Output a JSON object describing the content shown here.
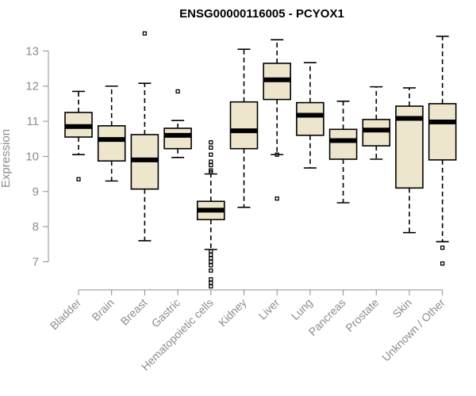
{
  "chart_data": {
    "type": "boxplot",
    "title": "ENSG00000116005 - PCYOX1",
    "xlabel": "",
    "ylabel": "Expression",
    "ylim": [
      6.2,
      13.55
    ],
    "yticks": [
      7,
      8,
      9,
      10,
      11,
      12,
      13
    ],
    "grid": false,
    "colors": {
      "box_fill": "#ede6cc",
      "stroke": "#000000",
      "axis": "#8c8c8c",
      "text": "#8c8c8c"
    },
    "categories": [
      "Bladder",
      "Brain",
      "Breast",
      "Gastric",
      "Hematopoietic cells",
      "Kidney",
      "Liver",
      "Lung",
      "Pancreas",
      "Prostate",
      "Skin",
      "Unknown / Other"
    ],
    "boxes": [
      {
        "name": "Bladder",
        "whisker_low": 10.05,
        "q1": 10.55,
        "median": 10.85,
        "q3": 11.25,
        "whisker_high": 11.85,
        "outliers": [
          9.35
        ]
      },
      {
        "name": "Brain",
        "whisker_low": 9.3,
        "q1": 9.87,
        "median": 10.48,
        "q3": 10.87,
        "whisker_high": 12.0,
        "outliers": []
      },
      {
        "name": "Breast",
        "whisker_low": 7.6,
        "q1": 9.07,
        "median": 9.9,
        "q3": 10.62,
        "whisker_high": 12.08,
        "outliers": [
          13.5
        ]
      },
      {
        "name": "Gastric",
        "whisker_low": 9.97,
        "q1": 10.22,
        "median": 10.6,
        "q3": 10.8,
        "whisker_high": 11.02,
        "outliers": [
          11.85
        ]
      },
      {
        "name": "Hematopoietic cells",
        "whisker_low": 7.35,
        "q1": 8.2,
        "median": 8.47,
        "q3": 8.72,
        "whisker_high": 9.5,
        "outliers": [
          10.4,
          10.25,
          10.05,
          9.85,
          9.75,
          9.6,
          9.55,
          7.3,
          7.2,
          7.1,
          7.0,
          6.9,
          6.75,
          6.5,
          6.4,
          6.3
        ]
      },
      {
        "name": "Kidney",
        "whisker_low": 8.55,
        "q1": 10.22,
        "median": 10.73,
        "q3": 11.55,
        "whisker_high": 13.05,
        "outliers": []
      },
      {
        "name": "Liver",
        "whisker_low": 10.05,
        "q1": 11.62,
        "median": 12.18,
        "q3": 12.65,
        "whisker_high": 13.32,
        "outliers": [
          10.05,
          8.8
        ]
      },
      {
        "name": "Lung",
        "whisker_low": 9.67,
        "q1": 10.6,
        "median": 11.17,
        "q3": 11.53,
        "whisker_high": 12.67,
        "outliers": []
      },
      {
        "name": "Pancreas",
        "whisker_low": 8.68,
        "q1": 9.92,
        "median": 10.45,
        "q3": 10.77,
        "whisker_high": 11.57,
        "outliers": []
      },
      {
        "name": "Prostate",
        "whisker_low": 9.92,
        "q1": 10.3,
        "median": 10.75,
        "q3": 11.05,
        "whisker_high": 11.98,
        "outliers": []
      },
      {
        "name": "Skin",
        "whisker_low": 7.83,
        "q1": 9.1,
        "median": 11.08,
        "q3": 11.43,
        "whisker_high": 11.95,
        "outliers": []
      },
      {
        "name": "Unknown / Other",
        "whisker_low": 7.57,
        "q1": 9.9,
        "median": 10.98,
        "q3": 11.5,
        "whisker_high": 13.42,
        "outliers": [
          7.4,
          6.95
        ]
      }
    ]
  }
}
